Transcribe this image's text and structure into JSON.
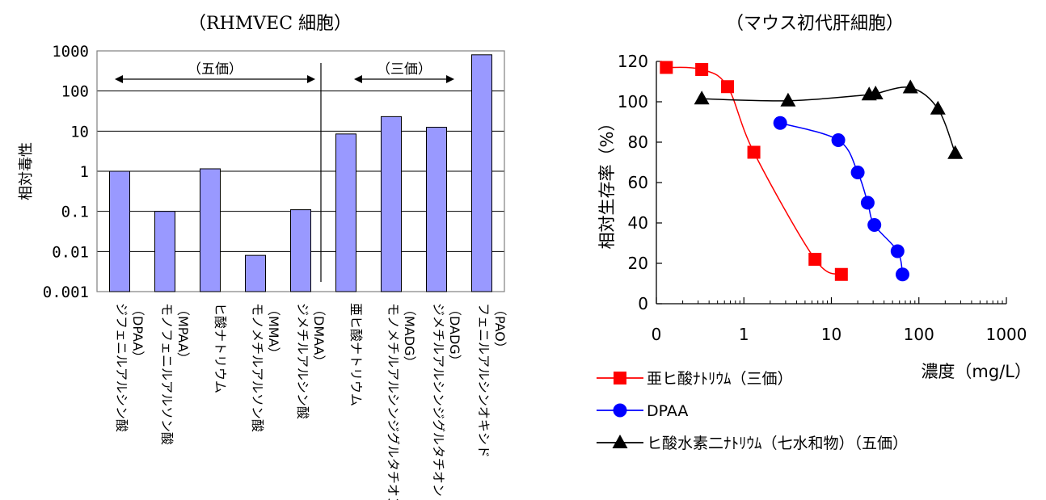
{
  "chart_data": [
    {
      "type": "bar",
      "title": "（RHMVEC 細胞）",
      "ylabel": "相対毒性",
      "yscale": "log",
      "ylim": [
        0.001,
        1000
      ],
      "yticks": [
        "0.001",
        "0.01",
        "0.1",
        "1",
        "10",
        "100",
        "1000"
      ],
      "categories": [
        "ジフェニルアルシン酸\n（DPAA）",
        "モノフェニルアルソン酸\n（MPAA）",
        "ヒ酸ナトリウム",
        "モノメチルアルソン酸\n（MMA）",
        "ジメチルアルシン酸\n（DMAA）",
        "亜ヒ酸ナトリウム",
        "モノメチルアルシンジグルタチオン\n（MADG）",
        "ジメチルアルシンジグルタチオン\n（DADG）",
        "フェニルアルシンオキシド\n（PAO）"
      ],
      "values": [
        1,
        0.1,
        1.15,
        0.008,
        0.11,
        8.5,
        23,
        12.5,
        800
      ],
      "bar_color": "#9999ff",
      "annotations": [
        {
          "text": "（五価）",
          "span": [
            0,
            4
          ]
        },
        {
          "text": "（三価）",
          "span": [
            5,
            7
          ]
        }
      ],
      "divider_after_index": 4
    },
    {
      "type": "line",
      "title": "（マウス初代肝細胞）",
      "xlabel": "濃度（mg/L）",
      "ylabel": "相対生存率（%）",
      "xscale": "log",
      "xlim": [
        0.1,
        1000
      ],
      "ylim": [
        0,
        120
      ],
      "xticks": [
        "0",
        "1",
        "10",
        "100",
        "1000"
      ],
      "yticks": [
        "0",
        "20",
        "40",
        "60",
        "80",
        "100",
        "120"
      ],
      "series": [
        {
          "name": "亜ヒ酸ﾅﾄﾘｳﾑ（三価）",
          "color": "#ff0000",
          "marker": "square",
          "x": [
            0.13,
            0.33,
            0.65,
            1.3,
            6.5,
            13
          ],
          "y": [
            117,
            116,
            107.5,
            75,
            22,
            14.5
          ]
        },
        {
          "name": "DPAA",
          "color": "#0000ff",
          "marker": "circle",
          "x": [
            2.6,
            12,
            20,
            26,
            31,
            57,
            65
          ],
          "y": [
            89.5,
            81,
            65,
            50,
            39,
            26,
            14.5
          ]
        },
        {
          "name": "ヒ酸水素二ﾅﾄﾘｳﾑ（七水和物）（五価）",
          "color": "#000000",
          "marker": "triangle",
          "x": [
            0.33,
            3.2,
            27,
            32,
            80,
            165,
            260
          ],
          "y": [
            101.5,
            100.5,
            103.5,
            104,
            107,
            96.5,
            74.5
          ]
        }
      ]
    }
  ]
}
